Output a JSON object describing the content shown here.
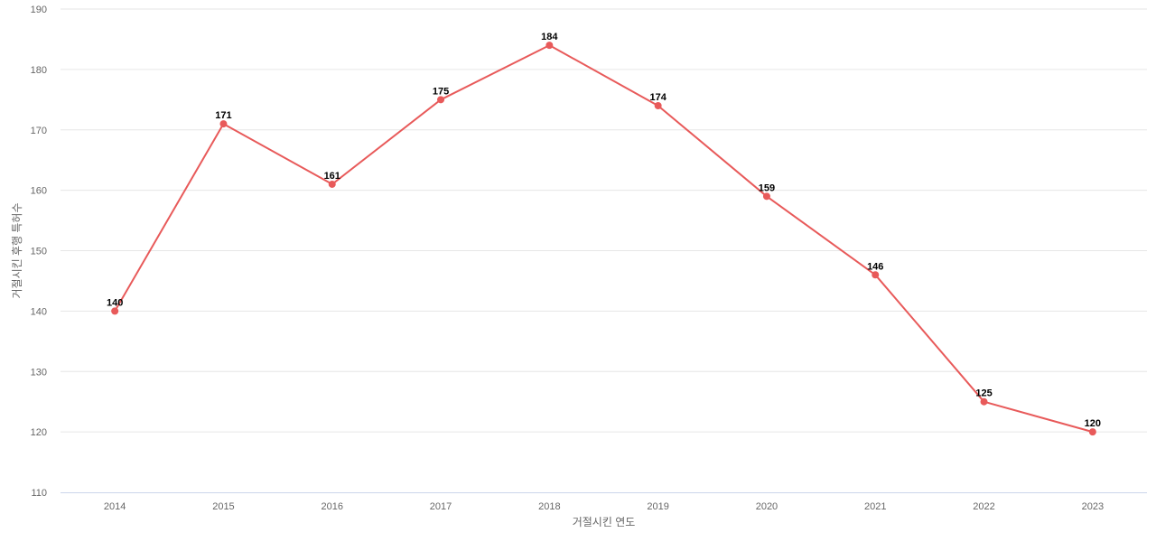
{
  "chart_data": {
    "type": "line",
    "title": "",
    "xlabel": "거절시킨 연도",
    "ylabel": "거절시킨 후행 특허수",
    "categories": [
      "2014",
      "2015",
      "2016",
      "2017",
      "2018",
      "2019",
      "2020",
      "2021",
      "2022",
      "2023"
    ],
    "series": [
      {
        "values": [
          140,
          171,
          161,
          175,
          184,
          174,
          159,
          146,
          125,
          120
        ],
        "color": "#e85a5a"
      }
    ],
    "ylim": [
      110,
      190
    ],
    "yticks": [
      110,
      120,
      130,
      140,
      150,
      160,
      170,
      180,
      190
    ],
    "grid": true,
    "legend": "none",
    "data_labels": true
  }
}
